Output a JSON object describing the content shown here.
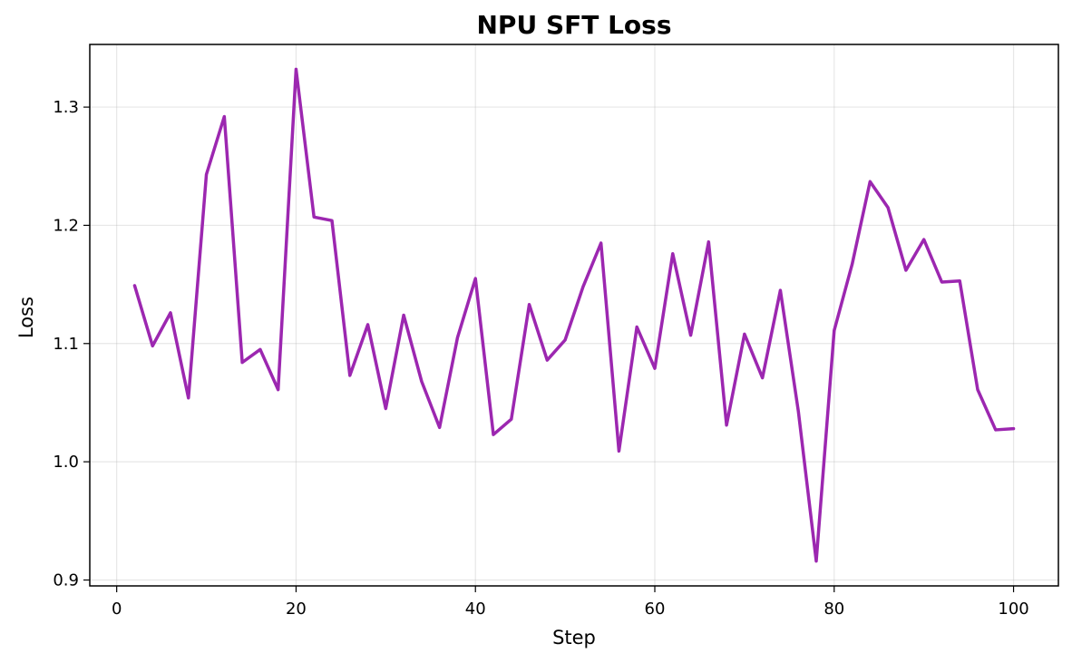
{
  "chart_data": {
    "type": "line",
    "title": "NPU SFT Loss",
    "xlabel": "Step",
    "ylabel": "Loss",
    "xlim": [
      -3,
      105
    ],
    "ylim": [
      0.895,
      1.353
    ],
    "xticks": [
      0,
      20,
      40,
      60,
      80,
      100
    ],
    "xtick_labels": [
      "0",
      "20",
      "40",
      "60",
      "80",
      "100"
    ],
    "yticks": [
      0.9,
      1.0,
      1.1,
      1.2,
      1.3
    ],
    "ytick_labels": [
      "0.9",
      "1.0",
      "1.1",
      "1.2",
      "1.3"
    ],
    "grid": true,
    "series": [
      {
        "color": "#9C27B0",
        "x": [
          2,
          4,
          6,
          8,
          10,
          12,
          14,
          16,
          18,
          20,
          22,
          24,
          26,
          28,
          30,
          32,
          34,
          36,
          38,
          40,
          42,
          44,
          46,
          48,
          50,
          52,
          54,
          56,
          58,
          60,
          62,
          64,
          66,
          68,
          70,
          72,
          74,
          76,
          78,
          80,
          82,
          84,
          86,
          88,
          90,
          92,
          94,
          96,
          98,
          100
        ],
        "y": [
          1.149,
          1.098,
          1.126,
          1.054,
          1.243,
          1.292,
          1.084,
          1.095,
          1.061,
          1.332,
          1.207,
          1.204,
          1.073,
          1.116,
          1.045,
          1.124,
          1.068,
          1.029,
          1.105,
          1.155,
          1.023,
          1.036,
          1.133,
          1.086,
          1.103,
          1.148,
          1.185,
          1.009,
          1.114,
          1.079,
          1.176,
          1.107,
          1.186,
          1.031,
          1.108,
          1.071,
          1.145,
          1.043,
          0.916,
          1.111,
          1.167,
          1.237,
          1.215,
          1.162,
          1.188,
          1.152,
          1.153,
          1.061,
          1.027,
          1.028
        ]
      }
    ]
  }
}
